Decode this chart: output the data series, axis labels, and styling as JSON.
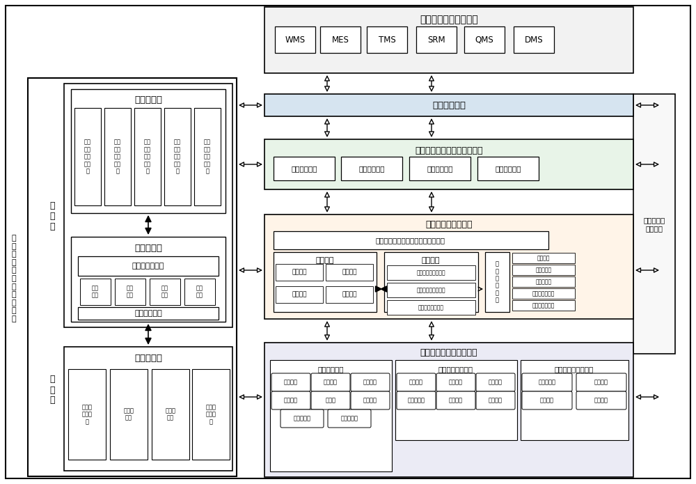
{
  "bg_color": "#ffffff",
  "title_top": "云端制造平台应用系统",
  "top_boxes": [
    "WMS",
    "MES",
    "TMS",
    "SRM",
    "QMS",
    "DMS"
  ],
  "interface_box": "异构业务接口",
  "func_module_title": "云端制造信息系统功能模块层",
  "func_modules": [
    "制造信息融合",
    "制造信息预估",
    "制造模型优化",
    "制造条件匹配"
  ],
  "model_layer_title": "云端制造信息模型层",
  "fusion_box": "任务期望与关联制造要素的信息融合",
  "material_title": "物料属性",
  "material_items": [
    "属性信息",
    "制造要求",
    "加工工艺",
    "能耗期望"
  ],
  "task_title": "任务期望",
  "task_items": [
    "任务强度的空间分布",
    "任务强度的时间分布",
    "任务前的情境强度"
  ],
  "related_title": "关\n联\n制\n造\n要\n素",
  "related_items": [
    "机床状态",
    "机器人负荷",
    "机器人状态",
    "机器人空间分布",
    "机器人时间分布"
  ],
  "collect_layer_title": "云端制造信息采集监控层",
  "collect_group1_title": "物料信息采集",
  "collect_group1_row1": [
    "物料编号",
    "物料类型",
    "物料形状"
  ],
  "collect_group1_row2": [
    "下料尺寸",
    "资料号",
    "工艺卡号"
  ],
  "collect_group1_row3": [
    "物料报废率",
    "物料合格率"
  ],
  "collect_group2_title": "制造过程信息采集",
  "collect_group2_row1": [
    "机床编号",
    "工人工号",
    "完成时间"
  ],
  "collect_group2_row2": [
    "机器人编号",
    "工人成本",
    "开始时间"
  ],
  "collect_group3_title": "任务与设备状态采集",
  "collect_group3_row1": [
    "温度与湿度",
    "使用寿命"
  ],
  "collect_group3_row2": [
    "能耗状态",
    "折旧系数"
  ],
  "left_panel_title1": "分析控制层",
  "left_analysis_items": [
    "能耗\n状态\n分析\n与决\n策",
    "设备\n状态\n分析\n与决\n策",
    "质量\n状态\n分析\n与决\n策",
    "物流\n状态\n分析\n与决\n策",
    "环境\n状态\n分析\n与决\n策"
  ],
  "left_panel_title2": "逻辑功能层",
  "middleware_title": "信息管理中间件",
  "middleware_items": [
    "数据\n过滤",
    "数据\n清洗",
    "数据\n镜像",
    "数据\n挖掘"
  ],
  "console_title": "中间件控制台",
  "db_title": "云端数据库",
  "db_items": [
    "制造基\n础信息\n库",
    "过滤规\n则库",
    "事件数\n据库",
    "质量管\n理规则\n库"
  ],
  "left_label1": "功\n能\n层",
  "left_label2": "存\n储\n层",
  "outer_left_label": "数\n据\n迁\n移\n与\n分\n析\n支\n撑\n平\n台",
  "right_label": "工业互联网\n支撑平台"
}
